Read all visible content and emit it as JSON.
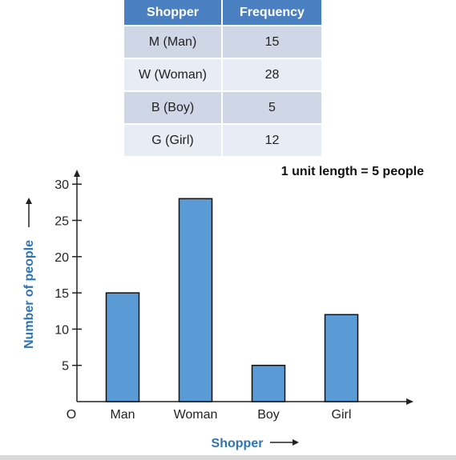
{
  "table": {
    "headers": [
      "Shopper",
      "Frequency"
    ],
    "rows": [
      {
        "shopper": "M (Man)",
        "frequency": "15"
      },
      {
        "shopper": "W (Woman)",
        "frequency": "28"
      },
      {
        "shopper": "B (Boy)",
        "frequency": "5"
      },
      {
        "shopper": "G (Girl)",
        "frequency": "12"
      }
    ]
  },
  "chart_data": {
    "type": "bar",
    "categories": [
      "Man",
      "Woman",
      "Boy",
      "Girl"
    ],
    "values": [
      15,
      28,
      5,
      12
    ],
    "xlabel": "Shopper",
    "ylabel": "Number of people",
    "scale_note": "1 unit length = 5 people",
    "origin_label": "O",
    "yticks": [
      5,
      10,
      15,
      20,
      25,
      30
    ],
    "ylim": [
      0,
      30
    ],
    "grid": false,
    "colors": {
      "bar_fill": "#5b9bd5",
      "bar_stroke": "#111111",
      "axis_label": "#2e74b5",
      "axis": "#222222"
    }
  }
}
